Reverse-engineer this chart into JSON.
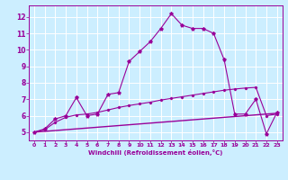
{
  "xlabel": "Windchill (Refroidissement éolien,°C)",
  "bg_color": "#cceeff",
  "line_color": "#990099",
  "grid_color": "#ffffff",
  "xlim": [
    -0.5,
    23.5
  ],
  "ylim": [
    4.5,
    12.7
  ],
  "yticks": [
    5,
    6,
    7,
    8,
    9,
    10,
    11,
    12
  ],
  "xticks": [
    0,
    1,
    2,
    3,
    4,
    5,
    6,
    7,
    8,
    9,
    10,
    11,
    12,
    13,
    14,
    15,
    16,
    17,
    18,
    19,
    20,
    21,
    22,
    23
  ],
  "series1_x": [
    0,
    1,
    2,
    3,
    4,
    5,
    6,
    7,
    8,
    9,
    10,
    11,
    12,
    13,
    14,
    15,
    16,
    17,
    18,
    19,
    20,
    21,
    22,
    23
  ],
  "series1_y": [
    5.0,
    5.2,
    5.8,
    6.0,
    7.1,
    6.0,
    6.1,
    7.3,
    7.4,
    9.3,
    9.9,
    10.5,
    11.3,
    12.2,
    11.5,
    11.3,
    11.3,
    11.0,
    9.4,
    6.1,
    6.1,
    7.0,
    4.9,
    6.2
  ],
  "series2_x": [
    0,
    1,
    2,
    3,
    4,
    5,
    6,
    7,
    8,
    9,
    10,
    11,
    12,
    13,
    14,
    15,
    16,
    17,
    18,
    19,
    20,
    21,
    22,
    23
  ],
  "series2_y": [
    5.0,
    5.15,
    5.6,
    5.9,
    6.05,
    6.1,
    6.2,
    6.35,
    6.5,
    6.62,
    6.72,
    6.82,
    6.95,
    7.05,
    7.15,
    7.25,
    7.35,
    7.45,
    7.55,
    7.62,
    7.68,
    7.72,
    6.0,
    6.1
  ],
  "series3_x": [
    0,
    23
  ],
  "series3_y": [
    5.0,
    6.15
  ]
}
